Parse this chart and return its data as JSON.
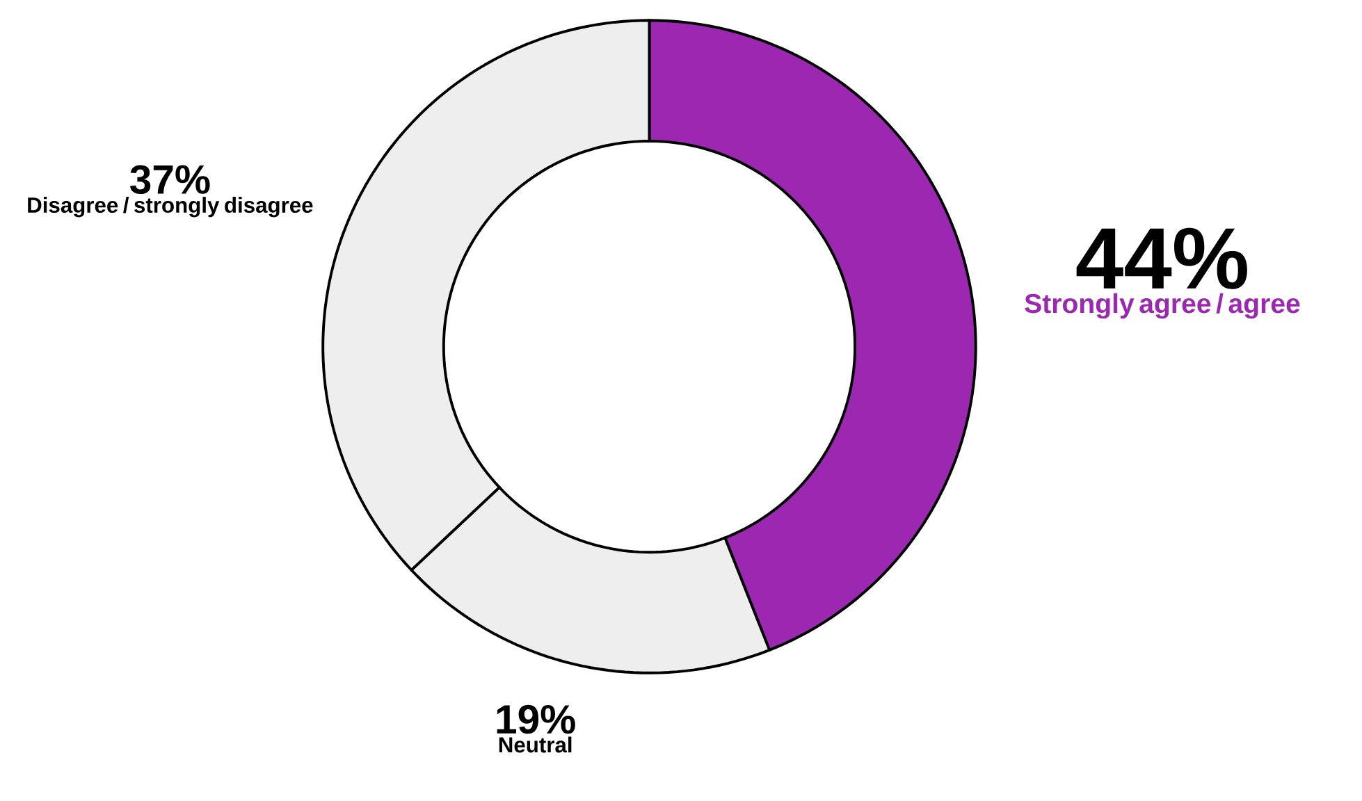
{
  "chart_data": {
    "type": "donut",
    "categories": [
      "Strongly agree / agree",
      "Neutral",
      "Disagree / strongly disagree"
    ],
    "values": [
      44,
      19,
      37
    ],
    "colors": [
      "#9c27b0",
      "#eeeeee",
      "#eeeeee"
    ],
    "value_labels": [
      "44%",
      "19%",
      "37%"
    ]
  }
}
